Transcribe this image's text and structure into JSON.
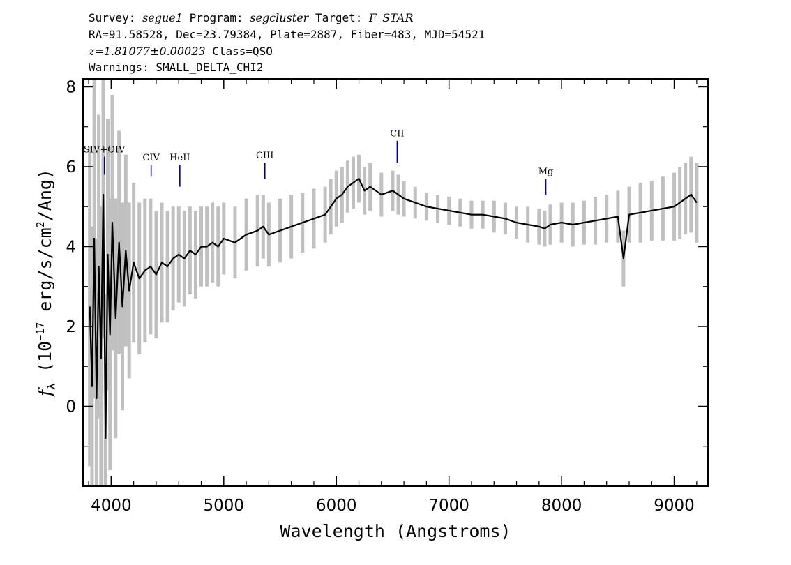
{
  "header": {
    "line1": {
      "survey_label": "Survey: ",
      "survey": "segue1",
      "program_label": " Program: ",
      "program": "segcluster",
      "target_label": " Target: ",
      "target": "F_STAR"
    },
    "line2": "RA=91.58528, Dec=23.79384, Plate=2887, Fiber=483, MJD=54521",
    "line3": {
      "redshift": "z=1.81077±0.00023",
      "class": " Class=QSO"
    },
    "line4": "Warnings: SMALL_DELTA_CHI2"
  },
  "chart_data": {
    "type": "line",
    "xlabel": "Wavelength (Angstroms)",
    "ylabel": "f_λ (10^-17 erg/s/cm^2/Ang)",
    "ylabel_parts": {
      "f": "f",
      "lambda": "λ",
      "open": " (10",
      "exp1": "−17",
      "mid": " erg/s/cm",
      "exp2": "2",
      "close": "/Ang)"
    },
    "xlim": [
      3750,
      9300
    ],
    "ylim": [
      -2,
      8.2
    ],
    "x_ticks": [
      4000,
      5000,
      6000,
      7000,
      8000,
      9000
    ],
    "x_tick_labels": [
      "4000",
      "5000",
      "6000",
      "7000",
      "8000",
      "9000"
    ],
    "y_ticks": [
      0,
      2,
      4,
      6,
      8
    ],
    "y_tick_labels": [
      "0",
      "2",
      "4",
      "6",
      "8"
    ],
    "grid": false,
    "series": [
      {
        "role": "flux",
        "color": "#000000",
        "x": [
          3810,
          3830,
          3850,
          3870,
          3890,
          3910,
          3930,
          3950,
          3970,
          3990,
          4010,
          4040,
          4070,
          4100,
          4130,
          4160,
          4200,
          4250,
          4300,
          4350,
          4400,
          4450,
          4500,
          4550,
          4600,
          4650,
          4700,
          4750,
          4800,
          4850,
          4900,
          4950,
          5000,
          5100,
          5200,
          5300,
          5350,
          5400,
          5500,
          5600,
          5700,
          5800,
          5900,
          5950,
          6000,
          6050,
          6100,
          6150,
          6200,
          6250,
          6300,
          6400,
          6500,
          6550,
          6600,
          6700,
          6800,
          6900,
          7000,
          7100,
          7200,
          7300,
          7400,
          7500,
          7600,
          7700,
          7800,
          7850,
          7900,
          8000,
          8100,
          8200,
          8300,
          8400,
          8500,
          8550,
          8600,
          8700,
          8800,
          8900,
          9000,
          9050,
          9100,
          9150,
          9200
        ],
        "y": [
          2.5,
          0.5,
          4.2,
          0.2,
          3.5,
          1.2,
          5.3,
          -0.8,
          3.8,
          1.8,
          4.6,
          2.2,
          4.1,
          2.5,
          3.9,
          2.9,
          3.6,
          3.2,
          3.4,
          3.5,
          3.3,
          3.6,
          3.5,
          3.7,
          3.8,
          3.7,
          3.9,
          3.8,
          4.0,
          4.0,
          4.1,
          4.0,
          4.2,
          4.1,
          4.3,
          4.4,
          4.5,
          4.3,
          4.4,
          4.5,
          4.6,
          4.7,
          4.8,
          5.0,
          5.2,
          5.3,
          5.5,
          5.6,
          5.7,
          5.4,
          5.5,
          5.3,
          5.4,
          5.3,
          5.2,
          5.1,
          5.0,
          4.95,
          4.9,
          4.85,
          4.8,
          4.8,
          4.75,
          4.7,
          4.6,
          4.55,
          4.5,
          4.45,
          4.55,
          4.6,
          4.55,
          4.6,
          4.65,
          4.7,
          4.75,
          3.7,
          4.8,
          4.85,
          4.9,
          4.95,
          5.0,
          5.1,
          5.2,
          5.3,
          5.1
        ]
      },
      {
        "role": "error",
        "color": "#c0c0c0",
        "x": [
          3810,
          3830,
          3850,
          3870,
          3890,
          3910,
          3930,
          3950,
          3970,
          3990,
          4010,
          4040,
          4070,
          4100,
          4130,
          4160,
          4200,
          4250,
          4300,
          4350,
          4400,
          4450,
          4500,
          4550,
          4600,
          4650,
          4700,
          4750,
          4800,
          4850,
          4900,
          4950,
          5000,
          5100,
          5200,
          5300,
          5350,
          5400,
          5500,
          5600,
          5700,
          5800,
          5900,
          5950,
          6000,
          6050,
          6100,
          6150,
          6200,
          6250,
          6300,
          6400,
          6500,
          6550,
          6600,
          6700,
          6800,
          6900,
          7000,
          7100,
          7200,
          7300,
          7400,
          7500,
          7600,
          7700,
          7800,
          7850,
          7900,
          8000,
          8100,
          8200,
          8300,
          8400,
          8500,
          8550,
          8600,
          8700,
          8800,
          8900,
          9000,
          9050,
          9100,
          9150,
          9200
        ],
        "y": [
          4.0,
          4.0,
          4.0,
          4.0,
          3.8,
          3.8,
          3.6,
          3.6,
          3.4,
          3.4,
          3.2,
          3.0,
          2.8,
          2.6,
          2.4,
          2.2,
          2.0,
          1.9,
          1.8,
          1.7,
          1.6,
          1.5,
          1.4,
          1.3,
          1.2,
          1.2,
          1.1,
          1.1,
          1.0,
          1.0,
          1.0,
          1.0,
          0.9,
          0.9,
          0.9,
          0.9,
          0.8,
          0.8,
          0.8,
          0.8,
          0.75,
          0.75,
          0.7,
          0.7,
          0.7,
          0.7,
          0.65,
          0.65,
          0.6,
          0.6,
          0.6,
          0.55,
          0.5,
          0.5,
          0.45,
          0.4,
          0.35,
          0.35,
          0.35,
          0.35,
          0.35,
          0.35,
          0.4,
          0.4,
          0.4,
          0.45,
          0.45,
          0.45,
          0.5,
          0.5,
          0.55,
          0.55,
          0.6,
          0.6,
          0.65,
          0.7,
          0.7,
          0.75,
          0.75,
          0.8,
          0.85,
          0.9,
          0.9,
          0.95,
          1.0
        ]
      }
    ],
    "line_marks": [
      {
        "label": "SIV+OIV",
        "wavelength": 3940,
        "y_low": 5.8,
        "y_high": 6.25
      },
      {
        "label": "CIV",
        "wavelength": 4355,
        "y_low": 5.75,
        "y_high": 6.05
      },
      {
        "label": "HeII",
        "wavelength": 4610,
        "y_low": 5.5,
        "y_high": 6.05
      },
      {
        "label": "CIII",
        "wavelength": 5365,
        "y_low": 5.7,
        "y_high": 6.1
      },
      {
        "label": "CII",
        "wavelength": 6540,
        "y_low": 6.1,
        "y_high": 6.65
      },
      {
        "label": "Mg",
        "wavelength": 7860,
        "y_low": 5.3,
        "y_high": 5.7
      }
    ],
    "line_mark_color": "#00008b"
  }
}
